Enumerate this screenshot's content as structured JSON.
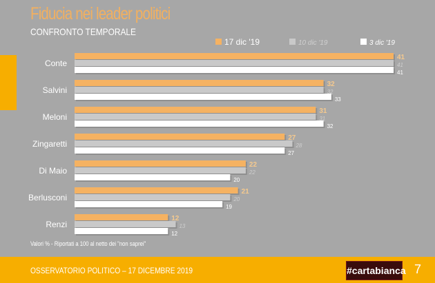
{
  "chart_data": {
    "type": "bar",
    "orientation": "horizontal",
    "title": "Fiducia nei leader politici",
    "subtitle": "CONFRONTO TEMPORALE",
    "categories": [
      "Conte",
      "Salvini",
      "Meloni",
      "Zingaretti",
      "Di Maio",
      "Berlusconi",
      "Renzi"
    ],
    "series": [
      {
        "name": "17 dic '19",
        "color": "#f5b262",
        "values": [
          41,
          32,
          31,
          27,
          22,
          21,
          12
        ]
      },
      {
        "name": "10 dic '19",
        "color": "#c9c9c9",
        "values": [
          41,
          32,
          31,
          28,
          22,
          20,
          13
        ]
      },
      {
        "name": "3 dic '19",
        "color": "#ffffff",
        "values": [
          41,
          33,
          32,
          27,
          20,
          19,
          12
        ]
      }
    ],
    "xlim": [
      0,
      41
    ],
    "legend": "top-right",
    "note": "Valori % - Riportati a 100 al netto dei \"non saprei\""
  },
  "footer": {
    "text": "OSSERVATORIO POLITICO – 17 DICEMBRE 2019",
    "brand": "#cartabianca",
    "page": "7"
  }
}
